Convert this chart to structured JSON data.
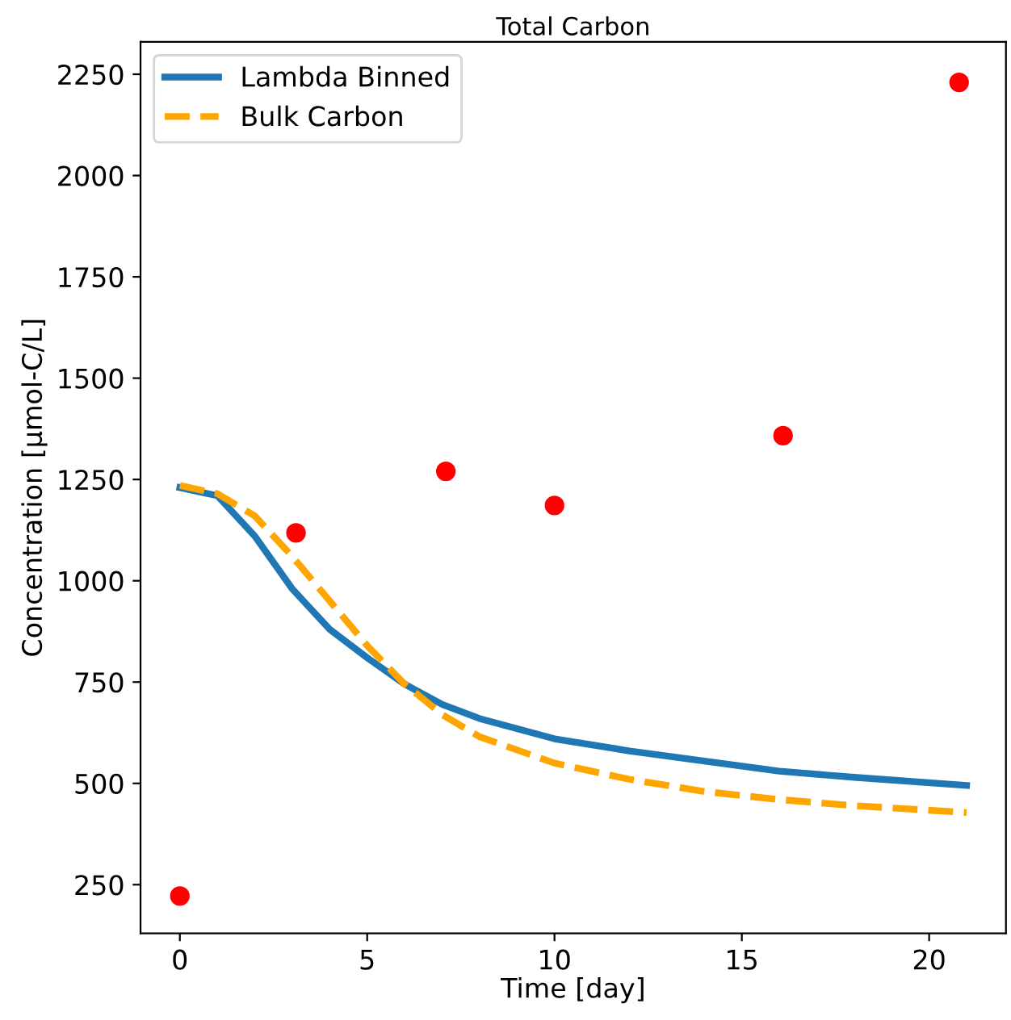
{
  "chart_data": {
    "type": "line",
    "title": "Total Carbon",
    "xlabel": "Time [day]",
    "ylabel": "Concentration [μmol-C/L]",
    "xlim": [
      -1.05,
      22.05
    ],
    "xticks": [
      0,
      5,
      10,
      15,
      20
    ],
    "ylim": [
      130,
      2330
    ],
    "yticks": [
      250,
      500,
      750,
      1000,
      1250,
      1500,
      1750,
      2000,
      2250
    ],
    "legend": "top left",
    "grid": false,
    "series": [
      {
        "name": "Lambda Binned",
        "color": "#1f77b4",
        "line_style": "solid",
        "x": [
          0,
          1,
          2,
          3,
          4,
          5,
          6,
          7,
          8,
          10,
          12,
          14,
          16,
          18,
          21
        ],
        "values": [
          1230,
          1210,
          1110,
          980,
          880,
          810,
          745,
          695,
          660,
          610,
          580,
          555,
          530,
          515,
          495
        ]
      },
      {
        "name": "Bulk Carbon",
        "color": "#ffa500",
        "line_style": "dashed",
        "x": [
          0,
          1,
          2,
          3,
          4,
          5,
          6,
          7,
          8,
          10,
          12,
          14,
          16,
          18,
          21
        ],
        "values": [
          1235,
          1215,
          1160,
          1060,
          950,
          840,
          745,
          670,
          615,
          550,
          510,
          480,
          460,
          445,
          428
        ]
      },
      {
        "type": "scatter",
        "color": "#ff0000",
        "marker": "circle",
        "x": [
          0,
          3.1,
          7.1,
          10.0,
          16.1,
          20.8
        ],
        "values": [
          222,
          1118,
          1270,
          1186,
          1358,
          2230
        ]
      }
    ]
  }
}
